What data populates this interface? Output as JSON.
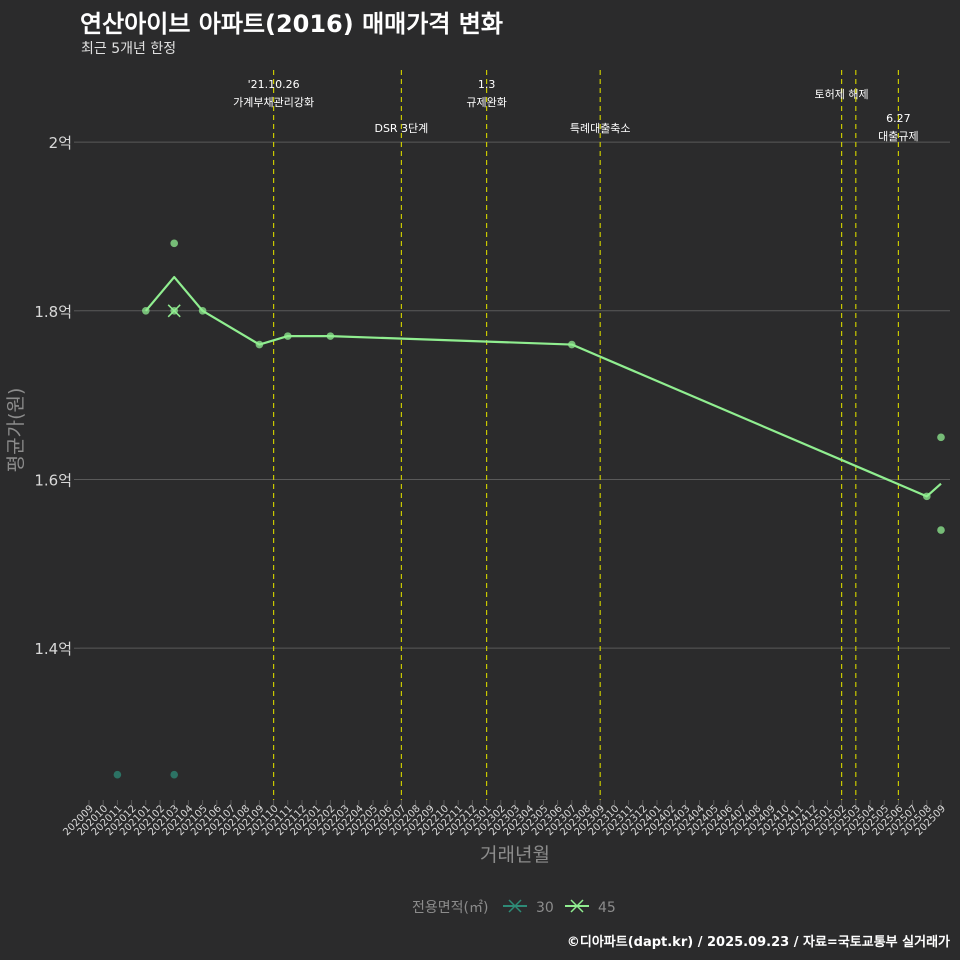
{
  "header": {
    "title": "연산아이브 아파트(2016) 매매가격 변화",
    "subtitle": "최근 5개년 한정"
  },
  "footer": {
    "caption": "©디아파트(dapt.kr) / 2025.09.23 / 자료=국토교통부 실거래가"
  },
  "colors": {
    "background": "#2b2b2c",
    "grid": "#5a5a5a",
    "event_line": "#c8c800",
    "series_45": "#90ee90",
    "series_30": "#2e8b77",
    "axis_text": "#d8d8d8",
    "axis_title": "#8c8c8c"
  },
  "chart_data": {
    "type": "line",
    "xlabel": "거래년월",
    "ylabel": "평균가(원)",
    "categories": [
      "202009",
      "202010",
      "202011",
      "202012",
      "202101",
      "202102",
      "202103",
      "202104",
      "202105",
      "202106",
      "202107",
      "202108",
      "202109",
      "202110",
      "202111",
      "202112",
      "202201",
      "202202",
      "202203",
      "202204",
      "202205",
      "202206",
      "202207",
      "202208",
      "202209",
      "202210",
      "202211",
      "202212",
      "202301",
      "202302",
      "202303",
      "202304",
      "202305",
      "202306",
      "202307",
      "202308",
      "202309",
      "202310",
      "202311",
      "202312",
      "202401",
      "202402",
      "202403",
      "202404",
      "202405",
      "202406",
      "202407",
      "202408",
      "202409",
      "202410",
      "202411",
      "202412",
      "202501",
      "202502",
      "202503",
      "202504",
      "202505",
      "202506",
      "202507",
      "202508",
      "202509"
    ],
    "y_ticks": [
      {
        "value": 1.4,
        "label": "1.4억"
      },
      {
        "value": 1.6,
        "label": "1.6억"
      },
      {
        "value": 1.8,
        "label": "1.8억"
      },
      {
        "value": 2.0,
        "label": "2억"
      }
    ],
    "ylim": [
      1.22,
      2.095
    ],
    "series": [
      {
        "name": "45",
        "color": "#90ee90",
        "line": [
          {
            "x": "202101",
            "y": 1.8
          },
          {
            "x": "202103",
            "y": 1.84
          },
          {
            "x": "202105",
            "y": 1.8
          },
          {
            "x": "202109",
            "y": 1.76
          },
          {
            "x": "202111",
            "y": 1.77
          },
          {
            "x": "202202",
            "y": 1.77
          },
          {
            "x": "202307",
            "y": 1.76
          },
          {
            "x": "202508",
            "y": 1.58
          },
          {
            "x": "202509",
            "y": 1.595
          }
        ],
        "points": [
          {
            "x": "202101",
            "y": 1.8
          },
          {
            "x": "202103",
            "y": 1.88
          },
          {
            "x": "202103",
            "y": 1.8
          },
          {
            "x": "202105",
            "y": 1.8
          },
          {
            "x": "202109",
            "y": 1.76
          },
          {
            "x": "202111",
            "y": 1.77
          },
          {
            "x": "202202",
            "y": 1.77
          },
          {
            "x": "202307",
            "y": 1.76
          },
          {
            "x": "202508",
            "y": 1.58
          },
          {
            "x": "202509",
            "y": 1.65
          },
          {
            "x": "202509",
            "y": 1.54
          }
        ]
      },
      {
        "name": "30",
        "color": "#2e8b77",
        "line": [],
        "points": [
          {
            "x": "202011",
            "y": 1.25
          },
          {
            "x": "202103",
            "y": 1.25
          }
        ]
      }
    ],
    "events": [
      {
        "x": "202110",
        "lines": [
          "'21.10.26",
          "가계부채관리강화"
        ],
        "tier": 0
      },
      {
        "x": "202207",
        "lines": [
          "DSR 3단계"
        ],
        "tier": 2
      },
      {
        "x": "202301",
        "lines": [
          "1.3",
          "규제완화"
        ],
        "tier": 0
      },
      {
        "x": "202309",
        "lines": [
          "특례대출축소"
        ],
        "tier": 2
      },
      {
        "x": "202502",
        "lines": [
          "토허제 해제"
        ],
        "tier": 1
      },
      {
        "x": "202503",
        "lines": [],
        "tier": 1
      },
      {
        "x": "202506",
        "lines": [
          "6.27",
          "대출규제"
        ],
        "tier": 3
      }
    ],
    "legend": {
      "title": "전용면적(㎡)",
      "items": [
        {
          "label": "30",
          "color": "#2e8b77"
        },
        {
          "label": "45",
          "color": "#90ee90"
        }
      ],
      "position": "bottom"
    }
  }
}
